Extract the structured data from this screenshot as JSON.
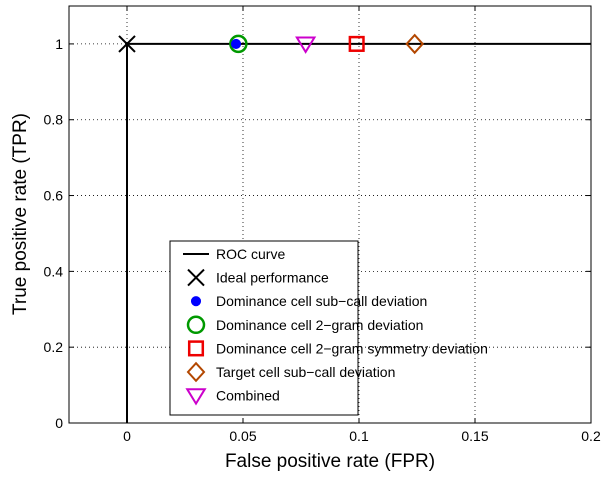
{
  "chart_data": {
    "type": "scatter",
    "title": "",
    "xlabel": "False positive rate (FPR)",
    "ylabel": "True positive rate (TPR)",
    "xlim": [
      -0.025,
      0.2
    ],
    "ylim": [
      0,
      1.1
    ],
    "grid": true,
    "legend_position": "bottom-right",
    "x_ticks": [
      0,
      0.05,
      0.1,
      0.15,
      0.2
    ],
    "x_tick_labels": [
      "0",
      "0.05",
      "0.1",
      "0.15",
      "0.2"
    ],
    "y_ticks": [
      0,
      0.2,
      0.4,
      0.6,
      0.8,
      1.0
    ],
    "y_tick_labels": [
      "0",
      "0.2",
      "0.4",
      "0.6",
      "0.8",
      "1"
    ],
    "roc_curve": {
      "name": "ROC curve",
      "color": "#000000",
      "points": [
        [
          0,
          0
        ],
        [
          0,
          1
        ],
        [
          0.2,
          1
        ]
      ]
    },
    "series": [
      {
        "name": "Ideal performance",
        "marker": "x",
        "color": "#000000",
        "x": 0,
        "y": 1
      },
      {
        "name": "Dominance cell sub−call deviation",
        "marker": "dot",
        "color": "#0000ff",
        "x": 0.047,
        "y": 1
      },
      {
        "name": "Dominance cell 2−gram deviation",
        "marker": "circle",
        "color": "#009900",
        "x": 0.048,
        "y": 1
      },
      {
        "name": "Dominance cell 2−gram symmetry deviation",
        "marker": "square",
        "color": "#ee0000",
        "x": 0.099,
        "y": 1
      },
      {
        "name": "Target cell sub−call deviation",
        "marker": "diamond",
        "color": "#b34700",
        "x": 0.124,
        "y": 1
      },
      {
        "name": "Combined",
        "marker": "triangle-down",
        "color": "#cc00cc",
        "x": 0.077,
        "y": 1
      }
    ],
    "legend": [
      {
        "label": "ROC curve",
        "marker": "line",
        "color": "#000000"
      },
      {
        "label": "Ideal performance",
        "marker": "x",
        "color": "#000000"
      },
      {
        "label": "Dominance cell sub−call deviation",
        "marker": "dot",
        "color": "#0000ff"
      },
      {
        "label": "Dominance cell 2−gram deviation",
        "marker": "circle",
        "color": "#009900"
      },
      {
        "label": "Dominance cell 2−gram symmetry deviation",
        "marker": "square",
        "color": "#ee0000"
      },
      {
        "label": "Target cell sub−call deviation",
        "marker": "diamond",
        "color": "#b34700"
      },
      {
        "label": "Combined",
        "marker": "triangle-down",
        "color": "#cc00cc"
      }
    ]
  }
}
